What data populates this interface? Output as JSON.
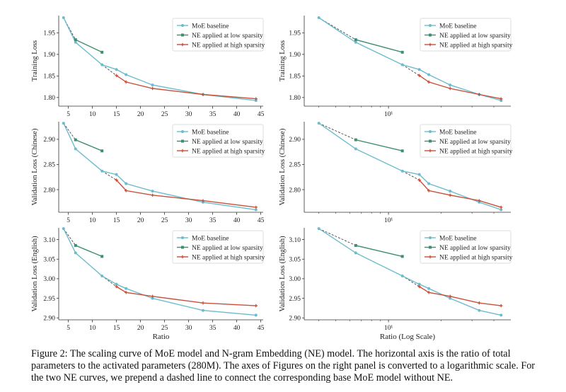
{
  "colors": {
    "baseline": "#6bbccd",
    "low": "#3e8f6e",
    "high": "#c8503a",
    "dashed": "#444444"
  },
  "chart_data": [
    {
      "type": "line",
      "scale": "linear",
      "ylabel": "Training Loss",
      "xlabel": "",
      "xlim": [
        3,
        45.5
      ],
      "ylim": [
        1.78,
        1.99
      ],
      "xticks": [
        5,
        10,
        15,
        20,
        25,
        30,
        35,
        40,
        45
      ],
      "yticks": [
        1.8,
        1.85,
        1.9,
        1.95
      ],
      "legend": "top-right",
      "series": [
        {
          "name": "MoE baseline",
          "color": "baseline",
          "x": [
            4,
            6.5,
            12,
            15,
            17,
            22.5,
            33,
            44
          ],
          "y": [
            1.985,
            1.928,
            1.876,
            1.865,
            1.853,
            1.829,
            1.807,
            1.793
          ]
        },
        {
          "name": "NE applied at low sparsity",
          "color": "low",
          "x": [
            6.5,
            12
          ],
          "y": [
            1.934,
            1.905
          ]
        },
        {
          "name": "NE applied at high sparsity",
          "color": "high",
          "x": [
            15,
            17,
            22.5,
            33,
            44
          ],
          "y": [
            1.851,
            1.836,
            1.821,
            1.807,
            1.797
          ]
        }
      ],
      "dashed_links": [
        {
          "from": [
            4,
            1.985
          ],
          "to": [
            6.5,
            1.934
          ]
        },
        {
          "from": [
            12,
            1.876
          ],
          "to": [
            15,
            1.851
          ]
        }
      ]
    },
    {
      "type": "line",
      "scale": "log",
      "ylabel": "Training Loss",
      "xlabel": "",
      "xlim": [
        3.3,
        50
      ],
      "ylim": [
        1.78,
        1.99
      ],
      "xticks": [
        10
      ],
      "xticklabels": [
        "10¹"
      ],
      "yticks": [
        1.8,
        1.85,
        1.9,
        1.95
      ],
      "legend": "top-right",
      "series": [
        {
          "name": "MoE baseline",
          "color": "baseline",
          "x": [
            4,
            6.5,
            12,
            15,
            17,
            22.5,
            33,
            44
          ],
          "y": [
            1.985,
            1.928,
            1.876,
            1.865,
            1.853,
            1.829,
            1.807,
            1.793
          ]
        },
        {
          "name": "NE applied at low sparsity",
          "color": "low",
          "x": [
            6.5,
            12
          ],
          "y": [
            1.934,
            1.905
          ]
        },
        {
          "name": "NE applied at high sparsity",
          "color": "high",
          "x": [
            15,
            17,
            22.5,
            33,
            44
          ],
          "y": [
            1.851,
            1.836,
            1.821,
            1.807,
            1.797
          ]
        }
      ],
      "dashed_links": [
        {
          "from": [
            4,
            1.985
          ],
          "to": [
            6.5,
            1.934
          ]
        },
        {
          "from": [
            12,
            1.876
          ],
          "to": [
            15,
            1.851
          ]
        }
      ]
    },
    {
      "type": "line",
      "scale": "linear",
      "ylabel": "Validation Loss (Chinese)",
      "xlabel": "",
      "xlim": [
        3,
        45.5
      ],
      "ylim": [
        2.755,
        2.935
      ],
      "xticks": [
        5,
        10,
        15,
        20,
        25,
        30,
        35,
        40,
        45
      ],
      "yticks": [
        2.8,
        2.85,
        2.9
      ],
      "legend": "top-right",
      "series": [
        {
          "name": "MoE baseline",
          "color": "baseline",
          "x": [
            4,
            6.5,
            12,
            15,
            17,
            22.5,
            33,
            44
          ],
          "y": [
            2.932,
            2.881,
            2.837,
            2.83,
            2.812,
            2.797,
            2.775,
            2.76
          ]
        },
        {
          "name": "NE applied at low sparsity",
          "color": "low",
          "x": [
            6.5,
            12
          ],
          "y": [
            2.899,
            2.877
          ]
        },
        {
          "name": "NE applied at high sparsity",
          "color": "high",
          "x": [
            15,
            17,
            22.5,
            33,
            44
          ],
          "y": [
            2.819,
            2.798,
            2.789,
            2.778,
            2.765
          ]
        }
      ],
      "dashed_links": [
        {
          "from": [
            4,
            2.932
          ],
          "to": [
            6.5,
            2.899
          ]
        },
        {
          "from": [
            12,
            2.837
          ],
          "to": [
            15,
            2.819
          ]
        }
      ]
    },
    {
      "type": "line",
      "scale": "log",
      "ylabel": "Validation Loss (Chinese)",
      "xlabel": "",
      "xlim": [
        3.3,
        50
      ],
      "ylim": [
        2.755,
        2.935
      ],
      "xticks": [
        10
      ],
      "xticklabels": [
        "10¹"
      ],
      "yticks": [
        2.8,
        2.85,
        2.9
      ],
      "legend": "top-right",
      "series": [
        {
          "name": "MoE baseline",
          "color": "baseline",
          "x": [
            4,
            6.5,
            12,
            15,
            17,
            22.5,
            33,
            44
          ],
          "y": [
            2.932,
            2.881,
            2.837,
            2.83,
            2.812,
            2.797,
            2.775,
            2.76
          ]
        },
        {
          "name": "NE applied at low sparsity",
          "color": "low",
          "x": [
            6.5,
            12
          ],
          "y": [
            2.899,
            2.877
          ]
        },
        {
          "name": "NE applied at high sparsity",
          "color": "high",
          "x": [
            15,
            17,
            22.5,
            33,
            44
          ],
          "y": [
            2.819,
            2.798,
            2.789,
            2.778,
            2.765
          ]
        }
      ],
      "dashed_links": [
        {
          "from": [
            4,
            2.932
          ],
          "to": [
            6.5,
            2.899
          ]
        },
        {
          "from": [
            12,
            2.837
          ],
          "to": [
            15,
            2.819
          ]
        }
      ]
    },
    {
      "type": "line",
      "scale": "linear",
      "ylabel": "Validation Loss (English)",
      "xlabel": "Ratio",
      "xlim": [
        3,
        45.5
      ],
      "ylim": [
        2.895,
        3.13
      ],
      "xticks": [
        5,
        10,
        15,
        20,
        25,
        30,
        35,
        40,
        45
      ],
      "yticks": [
        2.9,
        2.95,
        3.0,
        3.05,
        3.1
      ],
      "legend": "top-right",
      "series": [
        {
          "name": "MoE baseline",
          "color": "baseline",
          "x": [
            4,
            6.5,
            12,
            15,
            17,
            22.5,
            33,
            44
          ],
          "y": [
            3.128,
            3.066,
            3.007,
            2.986,
            2.975,
            2.95,
            2.919,
            2.907
          ]
        },
        {
          "name": "NE applied at low sparsity",
          "color": "low",
          "x": [
            6.5,
            12
          ],
          "y": [
            3.085,
            3.057
          ]
        },
        {
          "name": "NE applied at high sparsity",
          "color": "high",
          "x": [
            15,
            17,
            22.5,
            33,
            44
          ],
          "y": [
            2.98,
            2.965,
            2.955,
            2.938,
            2.931
          ]
        }
      ],
      "dashed_links": [
        {
          "from": [
            4,
            3.128
          ],
          "to": [
            6.5,
            3.085
          ]
        },
        {
          "from": [
            12,
            3.007
          ],
          "to": [
            15,
            2.98
          ]
        }
      ]
    },
    {
      "type": "line",
      "scale": "log",
      "ylabel": "Validation Loss (English)",
      "xlabel": "Ratio (Log Scale)",
      "xlim": [
        3.3,
        50
      ],
      "ylim": [
        2.895,
        3.13
      ],
      "xticks": [
        10
      ],
      "xticklabels": [
        "10¹"
      ],
      "yticks": [
        2.9,
        2.95,
        3.0,
        3.05,
        3.1
      ],
      "legend": "top-right",
      "series": [
        {
          "name": "MoE baseline",
          "color": "baseline",
          "x": [
            4,
            6.5,
            12,
            15,
            17,
            22.5,
            33,
            44
          ],
          "y": [
            3.128,
            3.066,
            3.007,
            2.986,
            2.975,
            2.95,
            2.919,
            2.907
          ]
        },
        {
          "name": "NE applied at low sparsity",
          "color": "low",
          "x": [
            6.5,
            12
          ],
          "y": [
            3.085,
            3.057
          ]
        },
        {
          "name": "NE applied at high sparsity",
          "color": "high",
          "x": [
            15,
            17,
            22.5,
            33,
            44
          ],
          "y": [
            2.98,
            2.965,
            2.955,
            2.938,
            2.931
          ]
        }
      ],
      "dashed_links": [
        {
          "from": [
            4,
            3.128
          ],
          "to": [
            6.5,
            3.085
          ]
        },
        {
          "from": [
            12,
            3.007
          ],
          "to": [
            15,
            2.98
          ]
        }
      ]
    }
  ],
  "caption": "Figure 2: The scaling curve of MoE model and N-gram Embedding (NE) model. The horizontal axis is the ratio of total parameters to the activated parameters (280M). The axes of Figures on the right panel is converted to a logarithmic scale. For the two NE curves, we prepend a dashed line to connect the corresponding base MoE model without NE."
}
